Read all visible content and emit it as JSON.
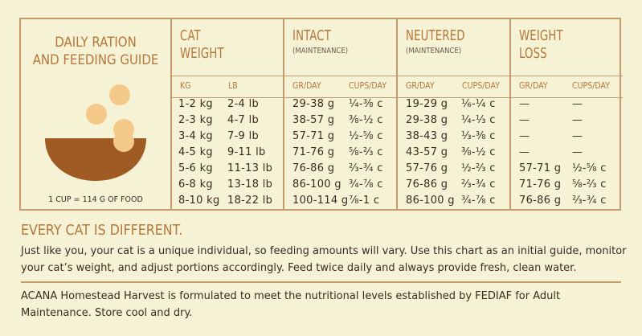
{
  "guide": {
    "title": "DAILY RATION\nAND FEEDING GUIDE",
    "cup_note": "1 CUP = 114 G OF FOOD"
  },
  "columns": {
    "cat_weight": {
      "title": "CAT\nWEIGHT",
      "sub1": "KG",
      "sub2": "LB"
    },
    "intact": {
      "title": "INTACT",
      "subtitle": "(MAINTENANCE)",
      "sub1": "GR/DAY",
      "sub2": "CUPS/DAY"
    },
    "neutered": {
      "title": "NEUTERED",
      "subtitle": "(MAINTENANCE)",
      "sub1": "GR/DAY",
      "sub2": "CUPS/DAY"
    },
    "weight_loss": {
      "title": "WEIGHT\nLOSS",
      "sub1": "GR/DAY",
      "sub2": "CUPS/DAY"
    }
  },
  "rows": [
    {
      "kg": "1-2 kg",
      "lb": "2-4 lb",
      "int_gr": "29-38 g",
      "int_cups": "¼-⅜ c",
      "neu_gr": "19-29 g",
      "neu_cups": "⅙-¼ c",
      "wl_gr": "—",
      "wl_cups": "—"
    },
    {
      "kg": "2-3 kg",
      "lb": "4-7 lb",
      "int_gr": "38-57 g",
      "int_cups": "⅜-½ c",
      "neu_gr": "29-38 g",
      "neu_cups": "¼-⅓ c",
      "wl_gr": "—",
      "wl_cups": "—"
    },
    {
      "kg": "3-4 kg",
      "lb": "7-9 lb",
      "int_gr": "57-71 g",
      "int_cups": "½-⅝ c",
      "neu_gr": "38-43 g",
      "neu_cups": "⅓-⅜ c",
      "wl_gr": "—",
      "wl_cups": "—"
    },
    {
      "kg": "4-5 kg",
      "lb": "9-11 lb",
      "int_gr": "71-76 g",
      "int_cups": "⅝-⅔ c",
      "neu_gr": "43-57 g",
      "neu_cups": "⅜-½ c",
      "wl_gr": "—",
      "wl_cups": "—"
    },
    {
      "kg": "5-6 kg",
      "lb": "11-13 lb",
      "int_gr": "76-86 g",
      "int_cups": "⅔-¾ c",
      "neu_gr": "57-76 g",
      "neu_cups": "½-⅔ c",
      "wl_gr": "57-71 g",
      "wl_cups": "½-⅝ c"
    },
    {
      "kg": "6-8 kg",
      "lb": "13-18 lb",
      "int_gr": "86-100 g",
      "int_cups": "¾-⅞ c",
      "neu_gr": "76-86 g",
      "neu_cups": "⅔-¾ c",
      "wl_gr": "71-76 g",
      "wl_cups": "⅝-⅔ c"
    },
    {
      "kg": "8-10 kg",
      "lb": "18-22 lb",
      "int_gr": "100-114 g",
      "int_cups": "⅞-1 c",
      "neu_gr": "86-100 g",
      "neu_cups": "¾-⅞ c",
      "wl_gr": "76-86 g",
      "wl_cups": "⅔-¾ c"
    }
  ],
  "notes": {
    "heading": "EVERY CAT IS DIFFERENT.",
    "body": "Just like you, your cat is a unique individual, so feeding amounts will vary. Use this chart as an initial guide, monitor your cat’s weight, and adjust portions accordingly. Feed twice daily and always provide fresh, clean water.",
    "footer": "ACANA Homestead Harvest is formulated to meet the nutritional levels established by FEDIAF for Adult Maintenance. Store cool and dry."
  },
  "colors": {
    "background": "#f6f2d6",
    "accent": "#b5773a",
    "rule": "#c49a6c",
    "bowl": "#a05a24",
    "kibble": "#f5c98a",
    "text": "#3d2b1f"
  },
  "icons": {
    "bowl": "food-bowl-icon"
  }
}
